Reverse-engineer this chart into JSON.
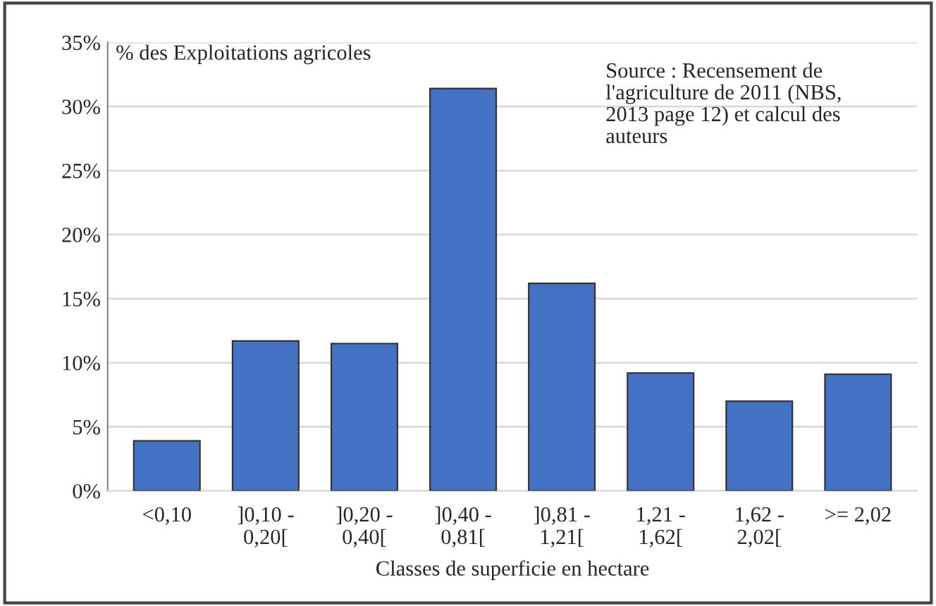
{
  "chart_data": {
    "type": "bar",
    "ylabel": "% des Exploitations agricoles",
    "xlabel": "Classes de superficie en hectare",
    "categories": [
      "<0,10",
      "]0,10 -\n0,20[",
      "]0,20 -\n0,40[",
      "]0,40 -\n0,81[",
      "]0,81 -\n1,21[",
      "1,21 -\n1,62[",
      "1,62 -\n2,02[",
      ">= 2,02"
    ],
    "values": [
      3.9,
      11.7,
      11.5,
      31.4,
      16.2,
      9.2,
      7.0,
      9.1
    ],
    "color": "#4472c4",
    "ylim": [
      0,
      35
    ],
    "yticks": [
      {
        "value": 0,
        "label": "0%"
      },
      {
        "value": 5,
        "label": "5%"
      },
      {
        "value": 10,
        "label": "10%"
      },
      {
        "value": 15,
        "label": "15%"
      },
      {
        "value": 20,
        "label": "20%"
      },
      {
        "value": 25,
        "label": "25%"
      },
      {
        "value": 30,
        "label": "30%"
      },
      {
        "value": 35,
        "label": "35%"
      }
    ],
    "grid": "y",
    "legend": false,
    "annotations": [
      "Source : Recensement de\nl'agriculture de 2011 (NBS,\n2013 page 12) et calcul des\nauteurs"
    ]
  }
}
